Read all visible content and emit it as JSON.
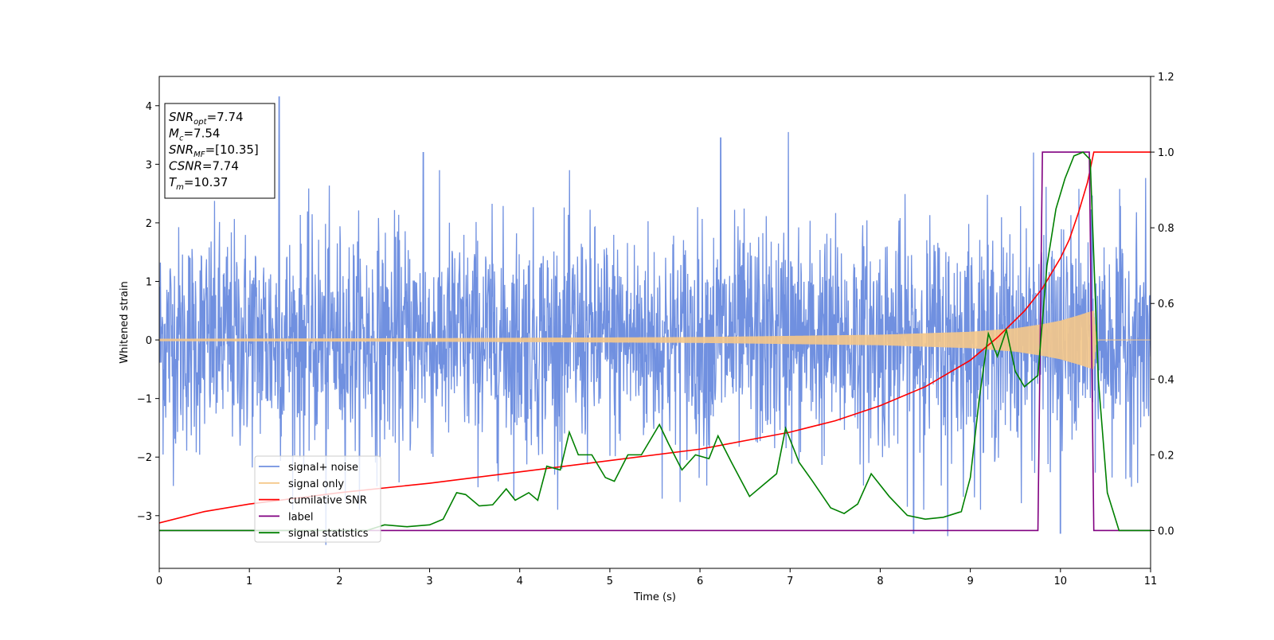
{
  "chart_data": {
    "type": "line",
    "title": "",
    "xlabel": "Time (s)",
    "ylabel": "Whitened strain",
    "y2label": "",
    "xlim": [
      0,
      11
    ],
    "ylim": [
      -3.9,
      4.5
    ],
    "y2lim": [
      -0.1,
      1.2
    ],
    "x_ticks": [
      0,
      1,
      2,
      3,
      4,
      5,
      6,
      7,
      8,
      9,
      10,
      11
    ],
    "y_ticks": [
      -3,
      -2,
      -1,
      0,
      1,
      2,
      3,
      4
    ],
    "y_tick_labels": [
      "−3",
      "−2",
      "−1",
      "0",
      "1",
      "2",
      "3",
      "4"
    ],
    "y2_ticks": [
      0.0,
      0.2,
      0.4,
      0.6,
      0.8,
      1.0,
      1.2
    ],
    "y2_tick_labels": [
      "0.0",
      "0.2",
      "0.4",
      "0.6",
      "0.8",
      "1.0",
      "1.2"
    ],
    "grid": false,
    "legend_position": "lower-left",
    "legend": [
      {
        "label": "signal+ noise",
        "color": "#7090e0"
      },
      {
        "label": "signal only",
        "color": "#f5c88a"
      },
      {
        "label": "cumilative SNR",
        "color": "#ff0000"
      },
      {
        "label": "label",
        "color": "#800080"
      },
      {
        "label": "signal statistics",
        "color": "#008000"
      }
    ],
    "info_box": {
      "position": "top-left",
      "lines": [
        {
          "base": "SNR",
          "sub": "opt",
          "value": "=7.74"
        },
        {
          "base": "M",
          "sub": "c",
          "value": "=7.54"
        },
        {
          "base": "SNR",
          "sub": "MF",
          "value": "=[10.35]"
        },
        {
          "base": "CSNR",
          "sub": "",
          "value": "=7.74"
        },
        {
          "base": "T",
          "sub": "m",
          "value": "=10.37"
        }
      ]
    },
    "series": [
      {
        "name": "signal+ noise",
        "axis": "left",
        "color": "#7090e0",
        "kind": "noise",
        "description_stats": {
          "x_start": 0,
          "x_end": 11,
          "std": 0.95,
          "max": 4.15,
          "min": -3.5
        },
        "spikes": [
          [
            1.33,
            4.15
          ],
          [
            1.85,
            -3.5
          ],
          [
            6.98,
            3.55
          ],
          [
            6.23,
            3.45
          ],
          [
            2.93,
            3.2
          ],
          [
            9.7,
            3.2
          ],
          [
            8.75,
            -3.35
          ],
          [
            10.0,
            -3.3
          ],
          [
            8.37,
            -3.3
          ]
        ]
      },
      {
        "name": "signal only",
        "axis": "left",
        "color": "#f5c88a",
        "kind": "chirp",
        "envelope": [
          [
            0,
            0.02
          ],
          [
            3,
            0.03
          ],
          [
            6,
            0.05
          ],
          [
            8,
            0.09
          ],
          [
            9,
            0.14
          ],
          [
            9.5,
            0.2
          ],
          [
            9.8,
            0.27
          ],
          [
            10.0,
            0.33
          ],
          [
            10.2,
            0.42
          ],
          [
            10.3,
            0.47
          ],
          [
            10.37,
            0.5
          ],
          [
            10.4,
            0.0
          ],
          [
            11,
            0.0
          ]
        ]
      },
      {
        "name": "cumilative SNR",
        "axis": "right",
        "color": "#ff0000",
        "kind": "line",
        "points": [
          [
            0,
            0.02
          ],
          [
            0.5,
            0.05
          ],
          [
            1,
            0.07
          ],
          [
            2,
            0.1
          ],
          [
            3,
            0.125
          ],
          [
            4,
            0.155
          ],
          [
            5,
            0.185
          ],
          [
            6,
            0.215
          ],
          [
            7,
            0.26
          ],
          [
            7.5,
            0.29
          ],
          [
            8,
            0.33
          ],
          [
            8.5,
            0.38
          ],
          [
            9,
            0.45
          ],
          [
            9.3,
            0.51
          ],
          [
            9.6,
            0.58
          ],
          [
            9.8,
            0.64
          ],
          [
            10.0,
            0.72
          ],
          [
            10.1,
            0.77
          ],
          [
            10.2,
            0.84
          ],
          [
            10.3,
            0.92
          ],
          [
            10.37,
            1.0
          ],
          [
            11,
            1.0
          ]
        ]
      },
      {
        "name": "label",
        "axis": "right",
        "color": "#800080",
        "kind": "line",
        "points": [
          [
            0,
            0.0
          ],
          [
            9.75,
            0.0
          ],
          [
            9.8,
            1.0
          ],
          [
            10.32,
            1.0
          ],
          [
            10.37,
            0.0
          ],
          [
            11,
            0.0
          ]
        ]
      },
      {
        "name": "signal statistics",
        "axis": "right",
        "color": "#008000",
        "kind": "line",
        "points": [
          [
            0,
            0.0
          ],
          [
            2.3,
            0.0
          ],
          [
            2.5,
            0.015
          ],
          [
            2.75,
            0.01
          ],
          [
            3.0,
            0.015
          ],
          [
            3.15,
            0.03
          ],
          [
            3.3,
            0.1
          ],
          [
            3.4,
            0.095
          ],
          [
            3.55,
            0.065
          ],
          [
            3.7,
            0.068
          ],
          [
            3.85,
            0.11
          ],
          [
            3.95,
            0.08
          ],
          [
            4.1,
            0.1
          ],
          [
            4.2,
            0.08
          ],
          [
            4.3,
            0.17
          ],
          [
            4.45,
            0.16
          ],
          [
            4.55,
            0.26
          ],
          [
            4.65,
            0.2
          ],
          [
            4.8,
            0.2
          ],
          [
            4.95,
            0.14
          ],
          [
            5.05,
            0.13
          ],
          [
            5.2,
            0.2
          ],
          [
            5.35,
            0.2
          ],
          [
            5.45,
            0.24
          ],
          [
            5.55,
            0.28
          ],
          [
            5.65,
            0.23
          ],
          [
            5.8,
            0.16
          ],
          [
            5.95,
            0.2
          ],
          [
            6.1,
            0.19
          ],
          [
            6.2,
            0.25
          ],
          [
            6.35,
            0.18
          ],
          [
            6.55,
            0.09
          ],
          [
            6.7,
            0.12
          ],
          [
            6.85,
            0.15
          ],
          [
            6.95,
            0.27
          ],
          [
            7.1,
            0.18
          ],
          [
            7.25,
            0.13
          ],
          [
            7.45,
            0.06
          ],
          [
            7.6,
            0.045
          ],
          [
            7.75,
            0.07
          ],
          [
            7.9,
            0.15
          ],
          [
            8.1,
            0.09
          ],
          [
            8.3,
            0.04
          ],
          [
            8.5,
            0.03
          ],
          [
            8.7,
            0.035
          ],
          [
            8.9,
            0.05
          ],
          [
            9.0,
            0.14
          ],
          [
            9.1,
            0.35
          ],
          [
            9.2,
            0.52
          ],
          [
            9.3,
            0.46
          ],
          [
            9.4,
            0.53
          ],
          [
            9.5,
            0.42
          ],
          [
            9.6,
            0.38
          ],
          [
            9.75,
            0.41
          ],
          [
            9.85,
            0.7
          ],
          [
            9.95,
            0.85
          ],
          [
            10.05,
            0.93
          ],
          [
            10.15,
            0.99
          ],
          [
            10.25,
            1.0
          ],
          [
            10.33,
            0.98
          ],
          [
            10.42,
            0.4
          ],
          [
            10.52,
            0.1
          ],
          [
            10.65,
            0.0
          ],
          [
            11,
            0.0
          ]
        ]
      }
    ]
  }
}
